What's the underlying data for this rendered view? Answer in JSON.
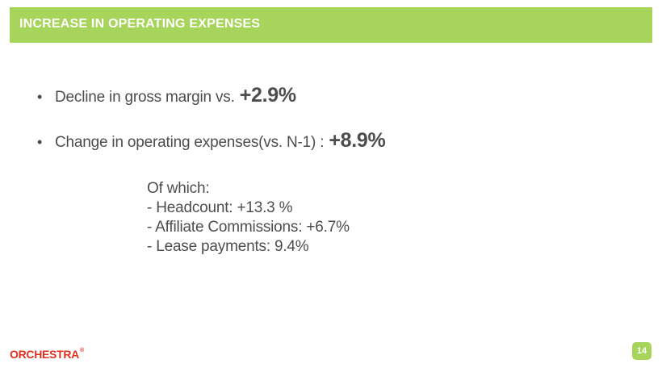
{
  "header": {
    "title": "INCREASE IN OPERATING EXPENSES"
  },
  "bullets": [
    {
      "marker": "•",
      "text": "Decline in gross margin vs.",
      "value": "+2.9%"
    },
    {
      "marker": "•",
      "text": "Change in operating expenses(vs. N-1) :",
      "value": "+8.9%"
    }
  ],
  "details": {
    "heading": "Of which:",
    "items": [
      "- Headcount: +13.3 %",
      "- Affiliate Commissions: +6.7%",
      "- Lease payments: 9.4%"
    ]
  },
  "footer": {
    "logo_text": "ORCHESTRA",
    "logo_mark": "®",
    "page_number": "14"
  },
  "colors": {
    "accent_green": "#a7d45a",
    "text_gray": "#4d4d4d",
    "logo_red": "#e0301e"
  }
}
